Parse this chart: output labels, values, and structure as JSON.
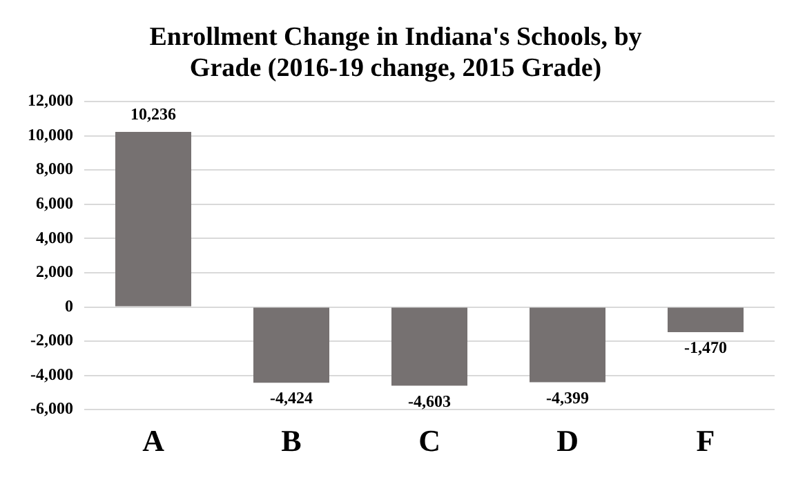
{
  "chart_data": {
    "type": "bar",
    "title": "Enrollment Change in Indiana's Schools, by Grade (2016-19 change, 2015 Grade)",
    "categories": [
      "A",
      "B",
      "C",
      "D",
      "F"
    ],
    "values": [
      10236,
      -4424,
      -4603,
      -4399,
      -1470
    ],
    "color": "#767171",
    "value_labels": [
      "10,236",
      "-4,424",
      "-4,603",
      "-4,399",
      "-1,470"
    ],
    "ylim": [
      -6000,
      12000
    ],
    "yticks": [
      {
        "value": -6000,
        "label": "-6,000"
      },
      {
        "value": -4000,
        "label": "-4,000"
      },
      {
        "value": -2000,
        "label": "-2,000"
      },
      0,
      {
        "value": 2000,
        "label": "2,000"
      },
      {
        "value": 4000,
        "label": "4,000"
      },
      {
        "value": 6000,
        "label": "6,000"
      },
      {
        "value": 8000,
        "label": "8,000"
      },
      {
        "value": 10000,
        "label": "10,000"
      },
      {
        "value": 12000,
        "label": "12,000"
      }
    ],
    "grid": "y",
    "legend": false
  }
}
